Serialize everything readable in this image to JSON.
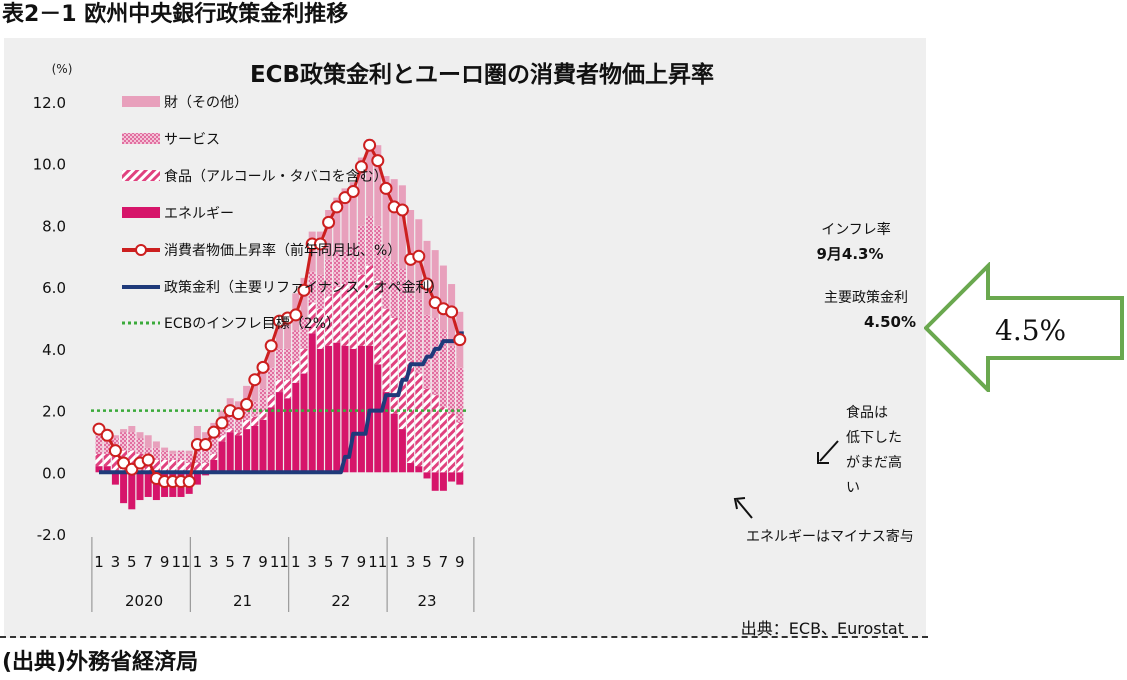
{
  "document": {
    "title": "表2－1 欧州中央銀行政策金利推移",
    "source": "(出典)外務省経済局"
  },
  "callout": {
    "text": "4.5%",
    "color": "#6aa84f"
  },
  "chart_data": {
    "type": "bar",
    "title": "ECB政策金利とユーロ圏の消費者物価上昇率",
    "yunit": "(%)",
    "ylim": [
      -2.0,
      12.0
    ],
    "yticks": [
      "12.0",
      "10.0",
      "8.0",
      "6.0",
      "4.0",
      "2.0",
      "0.0",
      "-2.0"
    ],
    "grid": false,
    "month_labels": [
      "1",
      "3",
      "5",
      "7",
      "9",
      "11",
      "1",
      "3",
      "5",
      "7",
      "9",
      "11",
      "1",
      "3",
      "5",
      "7",
      "9",
      "11",
      "1",
      "3",
      "5",
      "7",
      "9"
    ],
    "years": [
      "2020",
      "21",
      "22",
      "23"
    ],
    "months": [
      "2020-01",
      "2020-02",
      "2020-03",
      "2020-04",
      "2020-05",
      "2020-06",
      "2020-07",
      "2020-08",
      "2020-09",
      "2020-10",
      "2020-11",
      "2020-12",
      "2021-01",
      "2021-02",
      "2021-03",
      "2021-04",
      "2021-05",
      "2021-06",
      "2021-07",
      "2021-08",
      "2021-09",
      "2021-10",
      "2021-11",
      "2021-12",
      "2022-01",
      "2022-02",
      "2022-03",
      "2022-04",
      "2022-05",
      "2022-06",
      "2022-07",
      "2022-08",
      "2022-09",
      "2022-10",
      "2022-11",
      "2022-12",
      "2023-01",
      "2023-02",
      "2023-03",
      "2023-04",
      "2023-05",
      "2023-06",
      "2023-07",
      "2023-08",
      "2023-09"
    ],
    "series": [
      {
        "name": "財（その他）",
        "style": "solid",
        "color": "#e8a0bc",
        "values": [
          0.1,
          0.1,
          0.1,
          0.1,
          0.2,
          0.2,
          0.4,
          0.2,
          0.1,
          0.1,
          0.0,
          0.1,
          0.6,
          0.4,
          0.4,
          0.4,
          0.4,
          0.6,
          0.7,
          0.7,
          0.8,
          0.9,
          0.9,
          1.0,
          1.2,
          1.3,
          1.3,
          1.4,
          1.6,
          1.7,
          2.0,
          2.1,
          2.2,
          2.5,
          2.6,
          2.6,
          2.7,
          2.7,
          2.7,
          2.6,
          2.4,
          2.2,
          2.1,
          2.0,
          1.8
        ]
      },
      {
        "name": "サービス",
        "style": "dotted",
        "color": "#d4327a",
        "values": [
          0.8,
          0.7,
          0.6,
          0.6,
          0.6,
          0.5,
          0.4,
          0.4,
          0.3,
          0.2,
          0.3,
          0.3,
          0.6,
          0.6,
          0.6,
          0.4,
          0.6,
          0.4,
          0.4,
          0.5,
          0.7,
          0.9,
          1.0,
          1.0,
          1.0,
          1.0,
          1.0,
          1.1,
          1.2,
          1.2,
          1.1,
          1.2,
          1.6,
          1.6,
          1.8,
          1.7,
          1.8,
          2.0,
          2.2,
          2.4,
          2.4,
          2.5,
          2.5,
          2.2,
          1.8
        ]
      },
      {
        "name": "食品（アルコール・タバコを含む）",
        "style": "hatched",
        "color": "#e0427f",
        "values": [
          0.4,
          0.4,
          0.5,
          0.7,
          0.7,
          0.6,
          0.4,
          0.4,
          0.4,
          0.4,
          0.4,
          0.3,
          0.3,
          0.3,
          0.2,
          0.2,
          0.1,
          0.1,
          0.3,
          0.3,
          0.3,
          0.4,
          0.4,
          0.6,
          0.7,
          0.8,
          1.0,
          1.3,
          1.6,
          1.8,
          2.0,
          2.1,
          2.3,
          2.6,
          2.7,
          2.7,
          3.1,
          3.2,
          3.3,
          3.0,
          2.7,
          2.5,
          2.1,
          1.9,
          1.6
        ]
      },
      {
        "name": "エネルギー",
        "style": "solid",
        "color": "#d6156a",
        "values": [
          0.2,
          0.2,
          -0.4,
          -1.0,
          -1.2,
          -0.9,
          -0.8,
          -0.9,
          -0.8,
          -0.8,
          -0.8,
          -0.7,
          -0.4,
          -0.1,
          0.4,
          1.0,
          1.3,
          1.2,
          1.4,
          1.5,
          1.7,
          2.1,
          2.6,
          2.4,
          2.9,
          3.2,
          4.5,
          4.0,
          4.1,
          4.2,
          4.1,
          4.0,
          4.1,
          4.1,
          3.5,
          2.6,
          1.9,
          1.4,
          0.3,
          0.2,
          -0.2,
          -0.6,
          -0.6,
          -0.3,
          -0.4
        ]
      },
      {
        "name": "消費者物価上昇率（前年同月比、%）",
        "style": "line-marker",
        "color": "#cc1f1f",
        "values": [
          1.4,
          1.2,
          0.7,
          0.3,
          0.1,
          0.3,
          0.4,
          -0.2,
          -0.3,
          -0.3,
          -0.3,
          -0.3,
          0.9,
          0.9,
          1.3,
          1.6,
          2.0,
          1.9,
          2.2,
          3.0,
          3.4,
          4.1,
          4.9,
          5.0,
          5.1,
          5.9,
          7.4,
          7.4,
          8.1,
          8.6,
          8.9,
          9.1,
          9.9,
          10.6,
          10.1,
          9.2,
          8.6,
          8.5,
          6.9,
          7.0,
          6.1,
          5.5,
          5.3,
          5.2,
          4.3
        ]
      },
      {
        "name": "政策金利（主要リファイナンス・オペ金利）",
        "style": "line",
        "color": "#1f3a7a",
        "values": [
          0,
          0,
          0,
          0,
          0,
          0,
          0,
          0,
          0,
          0,
          0,
          0,
          0,
          0,
          0,
          0,
          0,
          0,
          0,
          0,
          0,
          0,
          0,
          0,
          0,
          0,
          0,
          0,
          0,
          0,
          0.5,
          1.25,
          1.25,
          2.0,
          2.0,
          2.5,
          2.5,
          3.0,
          3.5,
          3.5,
          3.75,
          4.0,
          4.25,
          4.25,
          4.5
        ]
      },
      {
        "name": "ECBのインフレ目標（2%）",
        "style": "dotted-line",
        "color": "#3aaa3a",
        "values": [
          2,
          2,
          2,
          2,
          2,
          2,
          2,
          2,
          2,
          2,
          2,
          2,
          2,
          2,
          2,
          2,
          2,
          2,
          2,
          2,
          2,
          2,
          2,
          2,
          2,
          2,
          2,
          2,
          2,
          2,
          2,
          2,
          2,
          2,
          2,
          2,
          2,
          2,
          2,
          2,
          2,
          2,
          2,
          2,
          2
        ]
      }
    ],
    "annotations": {
      "inflation_label": "インフレ率",
      "inflation_value": "9月4.3%",
      "rate_label": "主要政策金利",
      "rate_value": "4.50%",
      "food_note": [
        "食品は",
        "低下した",
        "がまだ高",
        "い"
      ],
      "energy_note": "エネルギーはマイナス寄与",
      "source": "出典：ECB、Eurostat"
    }
  }
}
